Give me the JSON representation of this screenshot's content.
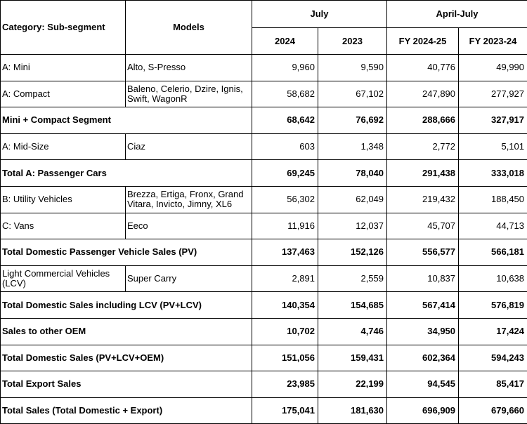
{
  "header": {
    "category": "Category: Sub-segment",
    "models": "Models",
    "period_1": "July",
    "period_2": "April-July",
    "years": [
      "2024",
      "2023",
      "FY 2024-25",
      "FY 2023-24"
    ]
  },
  "rows": [
    {
      "label": "A: Mini",
      "models": "Alto, S-Presso",
      "values": [
        "9,960",
        "9,590",
        "40,776",
        "49,990"
      ]
    },
    {
      "label": "A: Compact",
      "models": "Baleno, Celerio, Dzire, Ignis, Swift, WagonR",
      "values": [
        "58,682",
        "67,102",
        "247,890",
        "277,927"
      ]
    },
    {
      "label": "Mini + Compact Segment",
      "bold": true,
      "values": [
        "68,642",
        "76,692",
        "288,666",
        "327,917"
      ]
    },
    {
      "label": "A: Mid-Size",
      "models": "Ciaz",
      "values": [
        "603",
        "1,348",
        "2,772",
        "5,101"
      ]
    },
    {
      "label": "Total A: Passenger Cars",
      "bold": true,
      "values": [
        "69,245",
        "78,040",
        "291,438",
        "333,018"
      ]
    },
    {
      "label": "B: Utility Vehicles",
      "models": "Brezza, Ertiga, Fronx, Grand Vitara, Invicto, Jimny, XL6",
      "values": [
        "56,302",
        "62,049",
        "219,432",
        "188,450"
      ]
    },
    {
      "label": "C: Vans",
      "models": "Eeco",
      "values": [
        "11,916",
        "12,037",
        "45,707",
        "44,713"
      ]
    },
    {
      "label": "Total Domestic Passenger Vehicle Sales (PV)",
      "bold": true,
      "values": [
        "137,463",
        "152,126",
        "556,577",
        "566,181"
      ]
    },
    {
      "label": "Light Commercial Vehicles (LCV)",
      "models": "Super Carry",
      "values": [
        "2,891",
        "2,559",
        "10,837",
        "10,638"
      ]
    },
    {
      "label": "Total Domestic Sales including LCV (PV+LCV)",
      "bold": true,
      "values": [
        "140,354",
        "154,685",
        "567,414",
        "576,819"
      ]
    },
    {
      "label": "Sales to other OEM",
      "bold": true,
      "values": [
        "10,702",
        "4,746",
        "34,950",
        "17,424"
      ]
    },
    {
      "label": "Total Domestic Sales (PV+LCV+OEM)",
      "bold": true,
      "values": [
        "151,056",
        "159,431",
        "602,364",
        "594,243"
      ]
    },
    {
      "label": "Total Export Sales",
      "bold": true,
      "values": [
        "23,985",
        "22,199",
        "94,545",
        "85,417"
      ]
    },
    {
      "label": "Total Sales (Total Domestic + Export)",
      "bold": true,
      "values": [
        "175,041",
        "181,630",
        "696,909",
        "679,660"
      ]
    }
  ]
}
